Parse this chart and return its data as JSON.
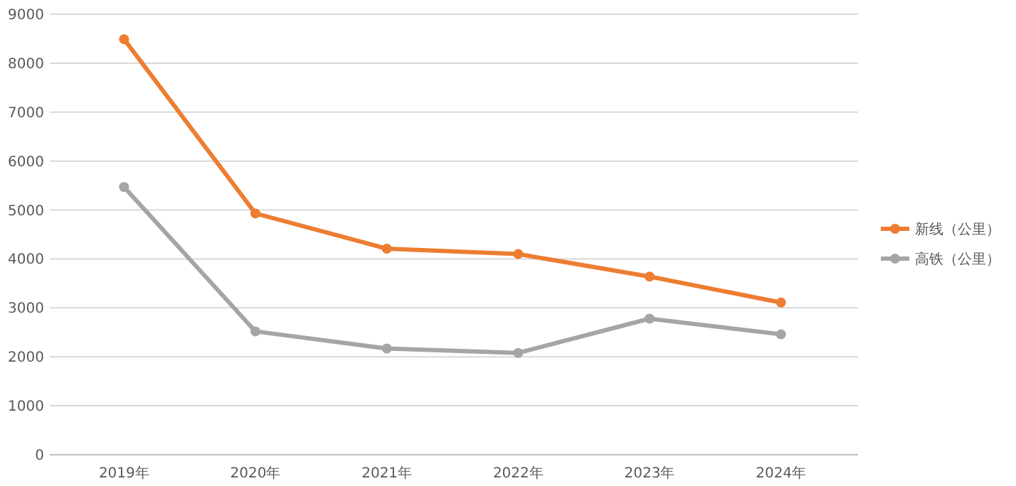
{
  "chart_data": {
    "type": "line",
    "categories": [
      "2019年",
      "2020年",
      "2021年",
      "2022年",
      "2023年",
      "2024年"
    ],
    "series": [
      {
        "name": "新线（公里）",
        "color": "#ed7d31",
        "values": [
          8490,
          4930,
          4210,
          4100,
          3640,
          3110
        ]
      },
      {
        "name": "高铁（公里）",
        "color": "#a5a5a5",
        "values": [
          5470,
          2520,
          2170,
          2080,
          2780,
          2460
        ]
      }
    ],
    "ylim": [
      0,
      9000
    ],
    "yticks": [
      0,
      1000,
      2000,
      3000,
      4000,
      5000,
      6000,
      7000,
      8000,
      9000
    ],
    "grid": "y",
    "legend": "right",
    "marker": "circle",
    "line_style": "solid"
  }
}
